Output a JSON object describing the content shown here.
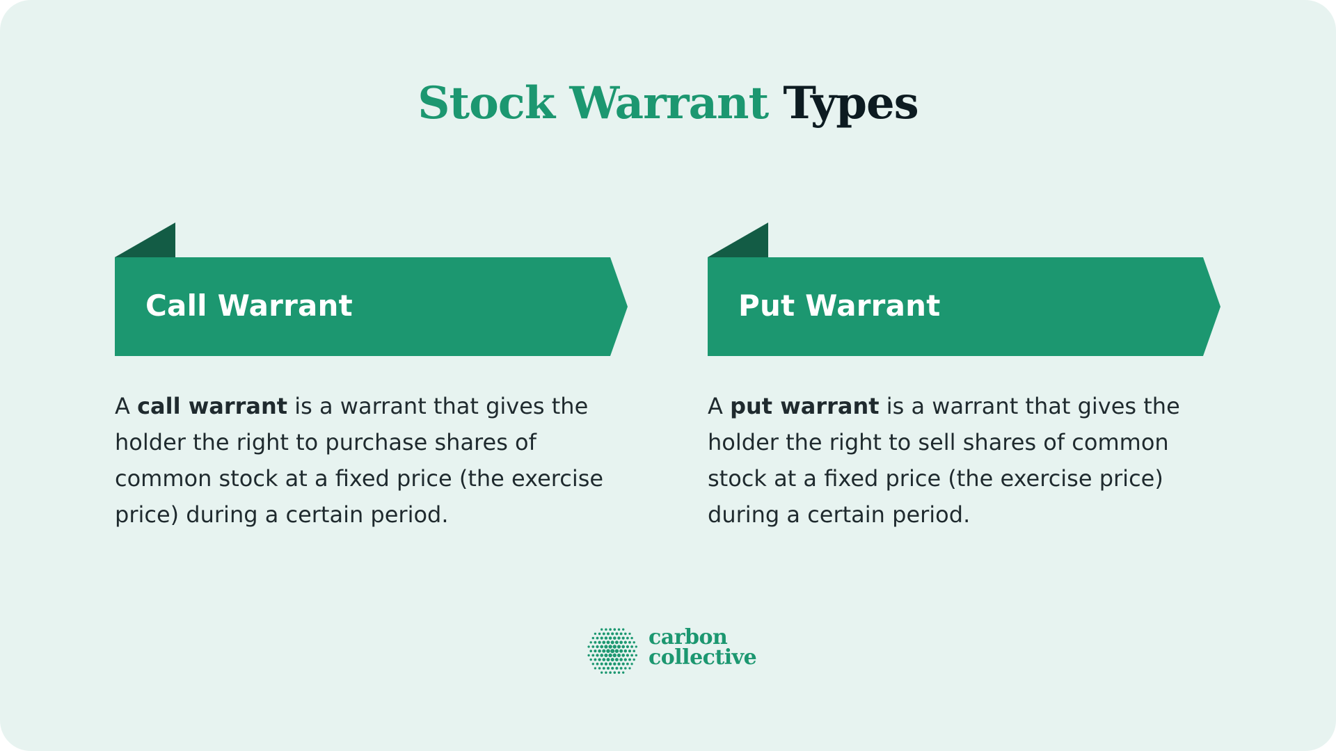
{
  "title": {
    "accent": "Stock Warrant",
    "rest": "Types"
  },
  "colors": {
    "background": "#e7f3f0",
    "accent_green": "#1c9770",
    "banner_fold": "#135c45",
    "title_dark": "#0d1b21",
    "body_text": "#1f2a2e"
  },
  "cards": [
    {
      "label": "Call Warrant",
      "desc_intro": "A ",
      "desc_bold": "call warrant",
      "desc_rest": " is a warrant that gives the holder the right to purchase shares of common stock at a fixed price (the exercise price) during a certain period."
    },
    {
      "label": "Put Warrant",
      "desc_intro": "A ",
      "desc_bold": "put warrant",
      "desc_rest": " is a warrant that gives the holder the right to sell shares of common stock at a fixed price (the exercise price) during a certain period."
    }
  ],
  "logo": {
    "icon": "dotted-circle-icon",
    "line1": "carbon",
    "line2": "collective"
  }
}
